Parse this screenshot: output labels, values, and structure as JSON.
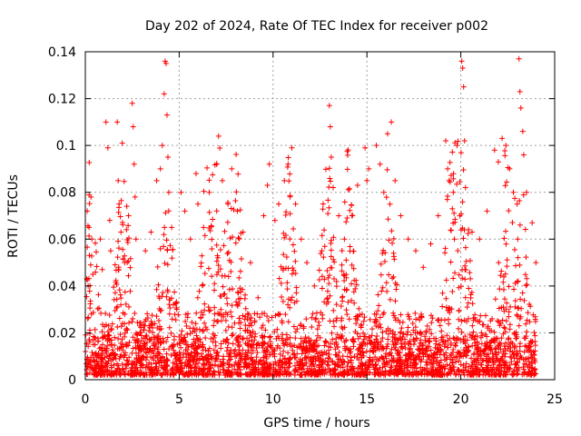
{
  "chart_data": {
    "type": "scatter",
    "title": "Day 202 of 2024, Rate Of TEC Index for receiver p002",
    "xlabel": "GPS time / hours",
    "ylabel": "ROTI / TECUs",
    "xlim": [
      0,
      25
    ],
    "ylim": [
      0,
      0.14
    ],
    "xticks": [
      0,
      5,
      10,
      15,
      20,
      25
    ],
    "yticks": [
      0,
      0.02,
      0.04,
      0.06,
      0.08,
      0.1,
      0.12,
      0.14
    ],
    "xtick_labels": [
      "0",
      "5",
      "10",
      "15",
      "20",
      "25"
    ],
    "ytick_labels": [
      "0",
      "0.02",
      "0.04",
      "0.06",
      "0.08",
      "0.1",
      "0.12",
      "0.14"
    ],
    "grid": true,
    "marker": "+",
    "marker_color": "#ff0000",
    "series": [
      {
        "name": "ROTI",
        "points": [
          [
            0.1,
            0.072
          ],
          [
            0.2,
            0.065
          ],
          [
            0.15,
            0.04
          ],
          [
            0.3,
            0.078
          ],
          [
            0.35,
            0.06
          ],
          [
            0.4,
            0.045
          ],
          [
            0.8,
            0.06
          ],
          [
            0.9,
            0.047
          ],
          [
            1.1,
            0.11
          ],
          [
            1.2,
            0.099
          ],
          [
            1.3,
            0.068
          ],
          [
            1.35,
            0.055
          ],
          [
            1.7,
            0.11
          ],
          [
            1.75,
            0.085
          ],
          [
            1.8,
            0.075
          ],
          [
            1.9,
            0.063
          ],
          [
            2.1,
            0.05
          ],
          [
            2.3,
            0.07
          ],
          [
            2.5,
            0.118
          ],
          [
            2.55,
            0.108
          ],
          [
            2.6,
            0.092
          ],
          [
            2.65,
            0.078
          ],
          [
            2.7,
            0.06
          ],
          [
            3.2,
            0.055
          ],
          [
            3.5,
            0.063
          ],
          [
            3.8,
            0.085
          ],
          [
            4.0,
            0.09
          ],
          [
            4.1,
            0.1
          ],
          [
            4.2,
            0.122
          ],
          [
            4.25,
            0.136
          ],
          [
            4.3,
            0.135
          ],
          [
            4.35,
            0.113
          ],
          [
            4.4,
            0.095
          ],
          [
            4.45,
            0.08
          ],
          [
            4.6,
            0.065
          ],
          [
            5.1,
            0.08
          ],
          [
            5.3,
            0.072
          ],
          [
            5.6,
            0.06
          ],
          [
            5.9,
            0.088
          ],
          [
            6.0,
            0.075
          ],
          [
            6.3,
            0.065
          ],
          [
            6.6,
            0.08
          ],
          [
            7.0,
            0.092
          ],
          [
            7.1,
            0.104
          ],
          [
            7.3,
            0.085
          ],
          [
            7.6,
            0.075
          ],
          [
            7.8,
            0.09
          ],
          [
            8.1,
            0.072
          ],
          [
            8.4,
            0.063
          ],
          [
            8.8,
            0.05
          ],
          [
            9.2,
            0.035
          ],
          [
            9.5,
            0.07
          ],
          [
            9.7,
            0.083
          ],
          [
            9.8,
            0.092
          ],
          [
            10.1,
            0.068
          ],
          [
            10.3,
            0.075
          ],
          [
            10.6,
            0.085
          ],
          [
            10.8,
            0.092
          ],
          [
            11.0,
            0.099
          ],
          [
            11.2,
            0.075
          ],
          [
            11.5,
            0.06
          ],
          [
            11.8,
            0.05
          ],
          [
            12.2,
            0.04
          ],
          [
            12.6,
            0.055
          ],
          [
            13.0,
            0.117
          ],
          [
            13.05,
            0.108
          ],
          [
            13.1,
            0.095
          ],
          [
            13.2,
            0.082
          ],
          [
            13.5,
            0.07
          ],
          [
            13.8,
            0.06
          ],
          [
            14.2,
            0.07
          ],
          [
            14.5,
            0.083
          ],
          [
            14.9,
            0.099
          ],
          [
            15.0,
            0.085
          ],
          [
            15.1,
            0.09
          ],
          [
            15.5,
            0.1
          ],
          [
            15.7,
            0.092
          ],
          [
            15.9,
            0.08
          ],
          [
            16.1,
            0.105
          ],
          [
            16.3,
            0.11
          ],
          [
            16.5,
            0.085
          ],
          [
            16.8,
            0.07
          ],
          [
            17.2,
            0.06
          ],
          [
            17.6,
            0.055
          ],
          [
            18.0,
            0.048
          ],
          [
            18.4,
            0.058
          ],
          [
            18.8,
            0.07
          ],
          [
            19.2,
            0.102
          ],
          [
            19.3,
            0.09
          ],
          [
            19.6,
            0.08
          ],
          [
            19.8,
            0.1
          ],
          [
            20.05,
            0.136
          ],
          [
            20.1,
            0.133
          ],
          [
            20.15,
            0.125
          ],
          [
            20.2,
            0.102
          ],
          [
            20.25,
            0.082
          ],
          [
            20.6,
            0.063
          ],
          [
            21.0,
            0.06
          ],
          [
            21.4,
            0.072
          ],
          [
            21.8,
            0.098
          ],
          [
            22.0,
            0.093
          ],
          [
            22.2,
            0.103
          ],
          [
            22.4,
            0.1
          ],
          [
            22.6,
            0.09
          ],
          [
            22.8,
            0.08
          ],
          [
            23.0,
            0.075
          ],
          [
            23.1,
            0.137
          ],
          [
            23.15,
            0.123
          ],
          [
            23.2,
            0.116
          ],
          [
            23.3,
            0.106
          ],
          [
            23.35,
            0.096
          ],
          [
            23.5,
            0.08
          ],
          [
            23.8,
            0.067
          ],
          [
            24.0,
            0.05
          ]
        ]
      }
    ]
  }
}
